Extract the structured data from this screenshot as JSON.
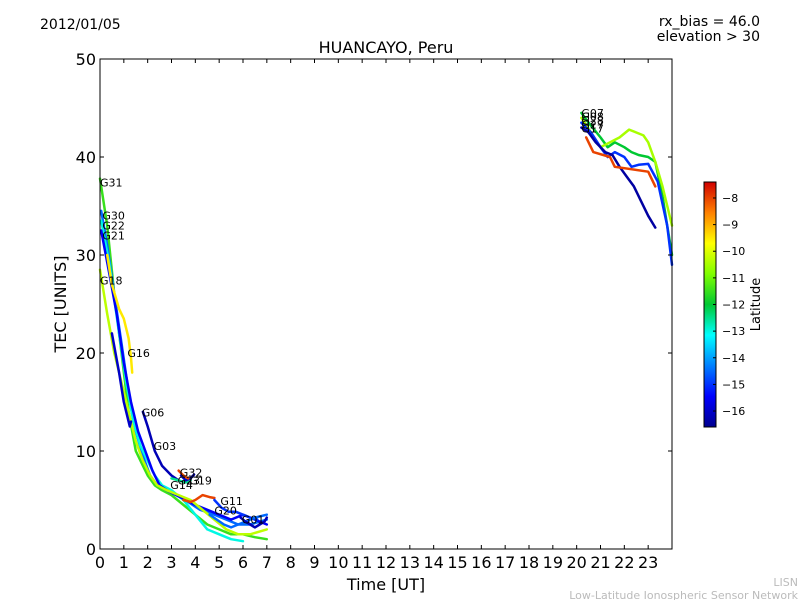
{
  "header": {
    "date": "2012/01/05",
    "title": "HUANCAYO, Peru",
    "rx_bias": "rx_bias = 46.0",
    "elevation": "elevation > 30"
  },
  "footer": {
    "line1": "LISN",
    "line2": "Low-Latitude Ionospheric Sensor Network"
  },
  "chart_data": {
    "type": "scatter",
    "title": "HUANCAYO, Peru",
    "xlabel": "Time [UT]",
    "ylabel": "TEC [UNITS]",
    "xlim": [
      0,
      24
    ],
    "ylim": [
      0,
      50
    ],
    "xticks": [
      0,
      1,
      2,
      3,
      4,
      5,
      6,
      7,
      8,
      9,
      10,
      11,
      12,
      13,
      14,
      15,
      16,
      17,
      18,
      19,
      20,
      21,
      22,
      23
    ],
    "yticks": [
      0,
      10,
      20,
      30,
      40,
      50
    ],
    "colorbar": {
      "label": "Latitude",
      "range": [
        -16.6,
        -7.4
      ],
      "ticks": [
        -8,
        -9,
        -10,
        -11,
        -12,
        -13,
        -14,
        -15,
        -16
      ]
    },
    "series": [
      {
        "name": "G31",
        "label_at": [
          0.0,
          37.0
        ],
        "lat": -11.5,
        "points": [
          [
            0.0,
            37.8
          ],
          [
            0.3,
            33
          ],
          [
            0.6,
            26
          ],
          [
            0.9,
            20
          ],
          [
            1.2,
            14
          ],
          [
            1.5,
            10
          ],
          [
            1.8,
            8.5
          ],
          [
            2.0,
            7.5
          ],
          [
            2.3,
            6.5
          ],
          [
            2.6,
            6.0
          ],
          [
            3.0,
            5.5
          ],
          [
            3.5,
            4.5
          ],
          [
            4.0,
            3.5
          ],
          [
            4.5,
            2.5
          ],
          [
            5.0,
            2.0
          ],
          [
            5.5,
            1.5
          ],
          [
            6.0,
            1.5
          ],
          [
            6.5,
            1.2
          ],
          [
            7.0,
            1.0
          ]
        ]
      },
      {
        "name": "G30",
        "label_at": [
          0.1,
          33.6
        ],
        "lat": -14.5,
        "points": [
          [
            0.05,
            34.5
          ],
          [
            0.3,
            31
          ],
          [
            0.6,
            26
          ],
          [
            0.9,
            21
          ],
          [
            1.2,
            16
          ],
          [
            1.5,
            12
          ],
          [
            1.8,
            9.5
          ],
          [
            2.1,
            7.5
          ],
          [
            2.4,
            6.5
          ],
          [
            2.8,
            6.0
          ],
          [
            3.2,
            5.5
          ],
          [
            3.7,
            4.8
          ],
          [
            4.2,
            4.0
          ],
          [
            4.8,
            3.5
          ],
          [
            5.3,
            3.0
          ],
          [
            5.8,
            2.5
          ],
          [
            6.3,
            2.5
          ],
          [
            7.0,
            3.0
          ]
        ]
      },
      {
        "name": "G22",
        "label_at": [
          0.1,
          32.6
        ],
        "lat": -13.0,
        "points": [
          [
            0.05,
            33.5
          ],
          [
            0.4,
            29
          ],
          [
            0.8,
            22
          ],
          [
            1.1,
            17
          ],
          [
            1.4,
            13
          ],
          [
            1.7,
            10.5
          ],
          [
            2.0,
            9
          ],
          [
            2.3,
            7.5
          ],
          [
            2.6,
            6.5
          ],
          [
            3.0,
            6.0
          ],
          [
            3.5,
            5.0
          ],
          [
            4.0,
            3.5
          ],
          [
            4.5,
            2.0
          ],
          [
            5.0,
            1.5
          ],
          [
            5.5,
            1.0
          ],
          [
            6.0,
            0.8
          ]
        ]
      },
      {
        "name": "G21",
        "label_at": [
          0.1,
          31.6
        ],
        "lat": -15.5,
        "points": [
          [
            0.05,
            32.5
          ],
          [
            0.4,
            28
          ],
          [
            0.7,
            24
          ],
          [
            1.0,
            19
          ],
          [
            1.3,
            15
          ],
          [
            1.6,
            12
          ],
          [
            1.9,
            10
          ],
          [
            2.2,
            8
          ],
          [
            2.5,
            6.5
          ],
          [
            2.8,
            6.0
          ],
          [
            3.2,
            5.5
          ],
          [
            3.6,
            5.0
          ],
          [
            4.0,
            4.5
          ],
          [
            4.5,
            4.0
          ],
          [
            5.0,
            3.5
          ],
          [
            5.5,
            3.0
          ],
          [
            6.0,
            3.5
          ],
          [
            6.5,
            3.0
          ],
          [
            7.0,
            2.5
          ]
        ]
      },
      {
        "name": "G18",
        "label_at": [
          0.0,
          27.0
        ],
        "lat": -10.3,
        "points": [
          [
            0.0,
            28.5
          ],
          [
            0.3,
            24
          ],
          [
            0.6,
            20
          ],
          [
            0.9,
            17
          ],
          [
            1.2,
            14
          ],
          [
            1.5,
            11
          ],
          [
            1.8,
            9
          ],
          [
            2.1,
            7.5
          ],
          [
            2.4,
            6.5
          ],
          [
            2.8,
            6.0
          ],
          [
            3.3,
            5.5
          ],
          [
            3.8,
            5.0
          ],
          [
            4.3,
            4.0
          ],
          [
            4.8,
            3.0
          ],
          [
            5.3,
            2.0
          ],
          [
            5.8,
            1.5
          ],
          [
            6.3,
            1.5
          ],
          [
            7.0,
            2.0
          ]
        ]
      },
      {
        "name": "G16",
        "label_at": [
          1.15,
          19.6
        ],
        "lat": -9.5,
        "points": [
          [
            0.3,
            30
          ],
          [
            0.5,
            27
          ],
          [
            0.8,
            24.5
          ],
          [
            1.0,
            23.5
          ],
          [
            1.2,
            21.5
          ],
          [
            1.3,
            19.5
          ],
          [
            1.35,
            18
          ]
        ]
      },
      {
        "name": "G06",
        "label_at": [
          1.75,
          13.5
        ],
        "lat": -16.0,
        "points": [
          [
            0.5,
            22
          ],
          [
            0.8,
            18
          ],
          [
            1.0,
            15
          ],
          [
            1.2,
            13
          ],
          [
            1.25,
            12.5
          ],
          [
            1.3,
            13
          ]
        ]
      },
      {
        "name": "G03",
        "label_at": [
          2.25,
          10.1
        ],
        "lat": -16.2,
        "points": [
          [
            1.8,
            14
          ],
          [
            2.0,
            12.5
          ],
          [
            2.3,
            10
          ],
          [
            2.6,
            8.5
          ],
          [
            3.0,
            7.5
          ],
          [
            3.3,
            7.0
          ]
        ]
      },
      {
        "name": "G32",
        "label_at": [
          3.35,
          7.4
        ],
        "lat": -12.5,
        "points": [
          [
            3.0,
            7.2
          ],
          [
            3.3,
            7.0
          ],
          [
            3.6,
            6.8
          ],
          [
            3.8,
            7.0
          ]
        ]
      },
      {
        "name": "G19",
        "label_at": [
          3.75,
          6.6
        ],
        "lat": -16.0,
        "points": [
          [
            3.4,
            7.5
          ],
          [
            3.6,
            7.0
          ],
          [
            3.8,
            7.2
          ],
          [
            3.95,
            7.6
          ]
        ]
      },
      {
        "name": "G23",
        "label_at": [
          3.25,
          6.6
        ],
        "lat": -8.0,
        "points": [
          [
            3.3,
            8.0
          ],
          [
            3.5,
            7.5
          ],
          [
            3.7,
            7.2
          ]
        ]
      },
      {
        "name": "G14",
        "label_at": [
          2.95,
          6.1
        ],
        "lat": -8.0,
        "points": [
          [
            3.5,
            5.0
          ],
          [
            3.8,
            4.8
          ],
          [
            4.0,
            5.0
          ],
          [
            4.3,
            5.5
          ],
          [
            4.6,
            5.3
          ],
          [
            4.8,
            5.2
          ]
        ]
      },
      {
        "name": "G11",
        "label_at": [
          5.05,
          4.5
        ],
        "lat": -15.0,
        "points": [
          [
            4.8,
            5.0
          ],
          [
            5.1,
            4.2
          ],
          [
            5.4,
            3.8
          ],
          [
            5.7,
            3.8
          ],
          [
            6.0,
            3.5
          ],
          [
            6.3,
            3.2
          ],
          [
            6.6,
            3.0
          ]
        ]
      },
      {
        "name": "G20",
        "label_at": [
          4.8,
          3.5
        ],
        "lat": -14.5,
        "points": [
          [
            4.6,
            3.5
          ],
          [
            4.9,
            3.0
          ],
          [
            5.2,
            2.5
          ],
          [
            5.5,
            2.2
          ],
          [
            5.8,
            2.5
          ],
          [
            6.1,
            2.8
          ],
          [
            6.5,
            3.2
          ],
          [
            7.0,
            3.5
          ]
        ]
      },
      {
        "name": "G01",
        "label_at": [
          5.95,
          2.6
        ],
        "lat": -16.2,
        "points": [
          [
            5.9,
            3.2
          ],
          [
            6.1,
            2.8
          ],
          [
            6.3,
            2.5
          ],
          [
            6.5,
            2.2
          ],
          [
            6.7,
            2.5
          ],
          [
            6.9,
            2.8
          ],
          [
            7.0,
            3.2
          ]
        ]
      },
      {
        "name": "G08",
        "label_at": [
          20.2,
          43.7
        ],
        "lat": -12.0,
        "points": [
          [
            20.2,
            44.5
          ],
          [
            20.5,
            43.5
          ],
          [
            21.0,
            42.0
          ],
          [
            21.3,
            41.0
          ],
          [
            21.6,
            41.5
          ],
          [
            22.0,
            41.0
          ],
          [
            22.3,
            40.5
          ],
          [
            22.6,
            40.2
          ],
          [
            23.0,
            40.0
          ],
          [
            23.3,
            39.5
          ],
          [
            23.6,
            36.0
          ],
          [
            23.8,
            33.0
          ],
          [
            24.0,
            30.0
          ]
        ]
      },
      {
        "name": "G28",
        "label_at": [
          20.2,
          43.3
        ],
        "lat": -10.5,
        "points": [
          [
            20.2,
            44.0
          ],
          [
            20.6,
            42.5
          ],
          [
            21.0,
            41.0
          ],
          [
            21.4,
            41.5
          ],
          [
            21.8,
            42.0
          ],
          [
            22.2,
            42.8
          ],
          [
            22.5,
            42.5
          ],
          [
            22.8,
            42.2
          ],
          [
            23.0,
            41.5
          ],
          [
            23.3,
            39.5
          ],
          [
            23.6,
            37.0
          ],
          [
            24.0,
            33.0
          ]
        ]
      },
      {
        "name": "G27",
        "label_at": [
          20.2,
          42.9
        ],
        "lat": -15.0,
        "points": [
          [
            20.2,
            43.5
          ],
          [
            20.6,
            42.5
          ],
          [
            21.0,
            41.0
          ],
          [
            21.3,
            40.0
          ],
          [
            21.6,
            40.5
          ],
          [
            22.0,
            40.0
          ],
          [
            22.3,
            39.0
          ],
          [
            22.6,
            39.2
          ],
          [
            23.0,
            39.3
          ],
          [
            23.4,
            37.5
          ],
          [
            23.8,
            33.0
          ],
          [
            24.0,
            29.0
          ]
        ]
      },
      {
        "name": "G17",
        "label_at": [
          20.2,
          42.5
        ],
        "lat": -16.4,
        "points": [
          [
            20.2,
            43.0
          ],
          [
            20.5,
            42.5
          ],
          [
            20.8,
            41.5
          ],
          [
            21.2,
            40.5
          ],
          [
            21.5,
            40.2
          ],
          [
            21.8,
            39.0
          ],
          [
            22.1,
            38.0
          ],
          [
            22.4,
            37.0
          ],
          [
            22.7,
            35.5
          ],
          [
            23.0,
            34.0
          ],
          [
            23.3,
            32.8
          ]
        ]
      },
      {
        "name": "G07",
        "label_at": [
          20.2,
          44.1
        ],
        "lat": -8.0,
        "points": [
          [
            20.4,
            42.0
          ],
          [
            20.7,
            40.5
          ],
          [
            21.4,
            40.0
          ],
          [
            21.6,
            39.0
          ],
          [
            23.0,
            38.5
          ],
          [
            23.3,
            37.0
          ]
        ]
      }
    ]
  }
}
